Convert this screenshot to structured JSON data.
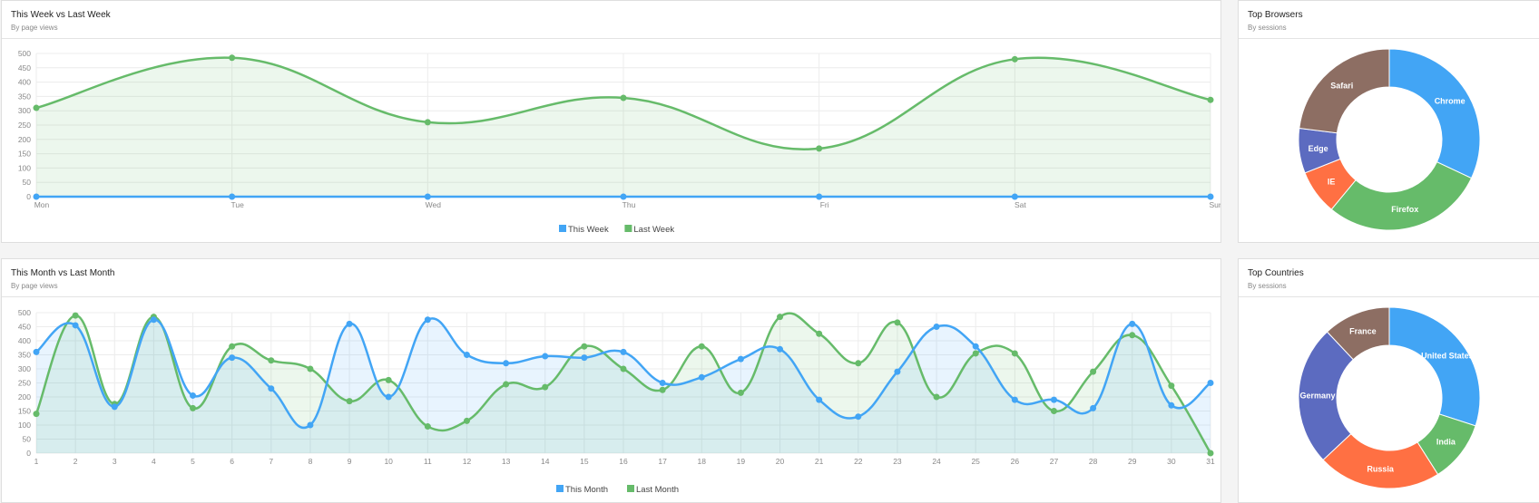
{
  "colors": {
    "blue": "#42a5f5",
    "green": "#66bb6a",
    "orange": "#ff7043",
    "indigo": "#5c6bc0",
    "brown": "#8d6e63"
  },
  "week_card": {
    "title": "This Week vs Last Week",
    "subtitle": "By page views"
  },
  "month_card": {
    "title": "This Month vs Last Month",
    "subtitle": "By page views"
  },
  "browsers_card": {
    "title": "Top Browsers",
    "subtitle": "By sessions"
  },
  "countries_card": {
    "title": "Top Countries",
    "subtitle": "By sessions"
  },
  "chart_data": [
    {
      "type": "area",
      "id": "week",
      "categories": [
        "Mon",
        "Tue",
        "Wed",
        "Thu",
        "Fri",
        "Sat",
        "Sun"
      ],
      "ylim": [
        0,
        500
      ],
      "yticks": [
        0,
        50,
        100,
        150,
        200,
        250,
        300,
        350,
        400,
        450,
        500
      ],
      "series": [
        {
          "name": "This Week",
          "color": "#42a5f5",
          "values": [
            0,
            0,
            0,
            0,
            0,
            0,
            0
          ]
        },
        {
          "name": "Last Week",
          "color": "#66bb6a",
          "values": [
            310,
            485,
            260,
            345,
            168,
            480,
            338
          ]
        }
      ]
    },
    {
      "type": "area",
      "id": "month",
      "categories": [
        "1",
        "2",
        "3",
        "4",
        "5",
        "6",
        "7",
        "8",
        "9",
        "10",
        "11",
        "12",
        "13",
        "14",
        "15",
        "16",
        "17",
        "18",
        "19",
        "20",
        "21",
        "22",
        "23",
        "24",
        "25",
        "26",
        "27",
        "28",
        "29",
        "30",
        "31"
      ],
      "ylim": [
        0,
        500
      ],
      "yticks": [
        0,
        50,
        100,
        150,
        200,
        250,
        300,
        350,
        400,
        450,
        500
      ],
      "series": [
        {
          "name": "This Month",
          "color": "#42a5f5",
          "values": [
            360,
            455,
            165,
            475,
            205,
            340,
            230,
            100,
            460,
            200,
            475,
            350,
            320,
            345,
            340,
            360,
            250,
            270,
            335,
            370,
            190,
            130,
            290,
            450,
            380,
            190,
            190,
            160,
            460,
            170,
            250
          ]
        },
        {
          "name": "Last Month",
          "color": "#66bb6a",
          "values": [
            140,
            490,
            175,
            485,
            160,
            380,
            330,
            300,
            185,
            260,
            95,
            115,
            245,
            235,
            380,
            300,
            225,
            380,
            215,
            485,
            425,
            320,
            465,
            200,
            355,
            355,
            150,
            290,
            420,
            240,
            0
          ]
        }
      ]
    },
    {
      "type": "pie",
      "id": "browsers",
      "labels": [
        "Chrome",
        "Firefox",
        "IE",
        "Edge",
        "Safari"
      ],
      "values": [
        32,
        29,
        8,
        8,
        23
      ],
      "colors": [
        "#42a5f5",
        "#66bb6a",
        "#ff7043",
        "#5c6bc0",
        "#8d6e63"
      ]
    },
    {
      "type": "pie",
      "id": "countries",
      "labels": [
        "United States",
        "India",
        "Russia",
        "Germany",
        "France"
      ],
      "values": [
        30,
        11,
        22,
        25,
        12
      ],
      "colors": [
        "#42a5f5",
        "#66bb6a",
        "#ff7043",
        "#5c6bc0",
        "#8d6e63"
      ]
    }
  ]
}
